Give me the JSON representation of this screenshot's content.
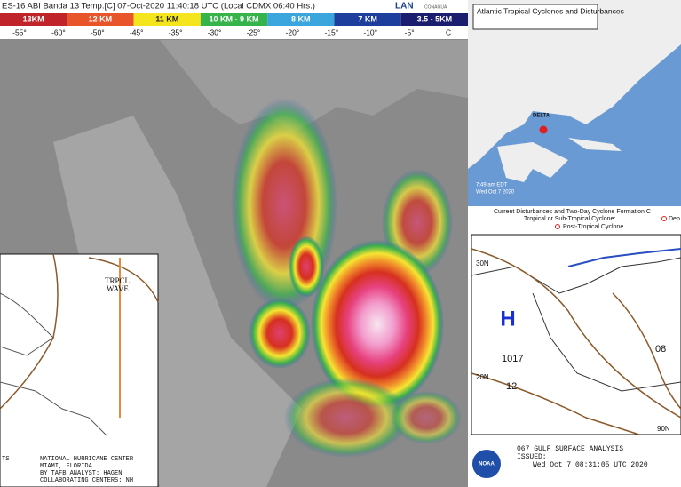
{
  "satellite": {
    "title": "ES-16 ABI Banda 13 Temp.[C] 07-Oct-2020 11:40:18 UTC (Local CDMX 06:40 Hrs.)",
    "logo": "LAN",
    "logo_sub": "CONAGUA",
    "scale": [
      {
        "label": "13KM",
        "color": "#c0242a"
      },
      {
        "label": "12 KM",
        "color": "#e8552a"
      },
      {
        "label": "11 KM",
        "color": "#f5e51f"
      },
      {
        "label": "10 KM - 9 KM",
        "color": "#36b34a"
      },
      {
        "label": "8 KM",
        "color": "#3ba6dd"
      },
      {
        "label": "7 KM",
        "color": "#1d3e9c"
      },
      {
        "label": "3.5 - 5KM",
        "color": "#1b1d6e"
      }
    ],
    "temps": [
      "-55°",
      "-60°",
      "-50°",
      "-45°",
      "-35°",
      "-30°",
      "-25°",
      "-20°",
      "-15°",
      "-10°",
      "-5°",
      "C"
    ]
  },
  "outlook": {
    "title": "Atlantic Tropical Cyclones and Disturbances",
    "storm": "DELTA",
    "time": "7:49 am EDT",
    "date": "Wed Oct 7 2020",
    "legend_title": "Current Disturbances and Two-Day Cyclone Formation C",
    "legend_1": "Tropical or Sub-Tropical Cyclone:",
    "legend_1b": "Dep",
    "legend_2": "Post-Tropical Cyclone"
  },
  "surface": {
    "lat_1": "30N",
    "high": "H",
    "pressure_1": "1017",
    "lat_2": "20N",
    "isobar": "12",
    "isobar_2": "08",
    "lon": "90N",
    "title": "067 GULF SURFACE ANALYSIS",
    "issued": "ISSUED:",
    "date": "Wed Oct 7 08:31:05 UTC 2020",
    "logo": "NOAA"
  },
  "caribbean": {
    "wave": "TRPCL",
    "wave_2": "WAVE",
    "corner": "TS",
    "center": "NATIONAL HURRICANE CENTER",
    "city": "MIAMI, FLORIDA",
    "analyst": "BY TAFB ANALYST: HAGEN",
    "collab": "COLLABORATING CENTERS: NH"
  }
}
